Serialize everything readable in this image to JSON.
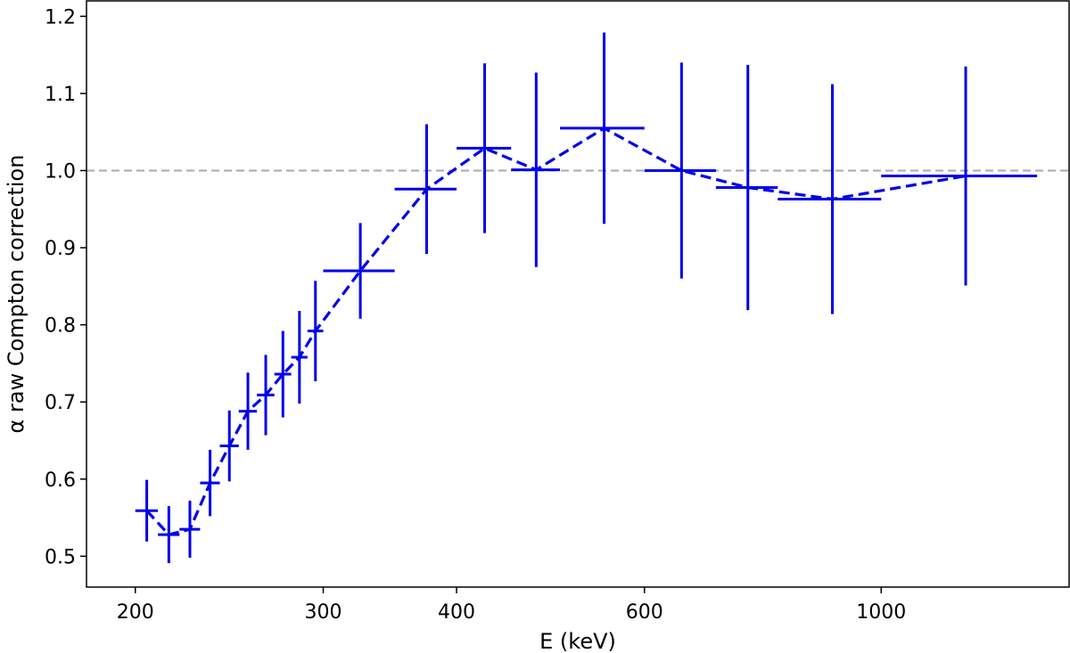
{
  "chart_data": {
    "type": "scatter",
    "title": "",
    "xlabel": "E (keV)",
    "ylabel": "α raw Compton correction",
    "x_scale": "log",
    "xlim": [
      180,
      1500
    ],
    "ylim": [
      0.46,
      1.22
    ],
    "x_ticks": [
      200,
      300,
      400,
      600,
      1000
    ],
    "y_ticks": [
      0.5,
      0.6,
      0.7,
      0.8,
      0.9,
      1.0,
      1.1,
      1.2
    ],
    "reference_line": {
      "y": 1.0,
      "style": "dashed",
      "color": "#aaaaaa"
    },
    "grid": false,
    "legend": "none",
    "series": [
      {
        "color": "#0000ee",
        "line_style": "dashed",
        "points": [
          {
            "x": 205,
            "x_low": 200,
            "x_high": 210,
            "y": 0.559,
            "y_err": 0.04
          },
          {
            "x": 215,
            "x_low": 210,
            "x_high": 220,
            "y": 0.528,
            "y_err": 0.037
          },
          {
            "x": 225,
            "x_low": 220,
            "x_high": 230,
            "y": 0.535,
            "y_err": 0.037
          },
          {
            "x": 235,
            "x_low": 230,
            "x_high": 240,
            "y": 0.595,
            "y_err": 0.043
          },
          {
            "x": 245,
            "x_low": 240,
            "x_high": 250,
            "y": 0.643,
            "y_err": 0.046
          },
          {
            "x": 255,
            "x_low": 250,
            "x_high": 260,
            "y": 0.688,
            "y_err": 0.05
          },
          {
            "x": 265,
            "x_low": 260,
            "x_high": 270,
            "y": 0.709,
            "y_err": 0.052
          },
          {
            "x": 275,
            "x_low": 270,
            "x_high": 280,
            "y": 0.736,
            "y_err": 0.056
          },
          {
            "x": 285,
            "x_low": 280,
            "x_high": 290,
            "y": 0.758,
            "y_err": 0.06
          },
          {
            "x": 295,
            "x_low": 290,
            "x_high": 300,
            "y": 0.792,
            "y_err": 0.065
          },
          {
            "x": 325,
            "x_low": 300,
            "x_high": 350,
            "y": 0.87,
            "y_err": 0.062
          },
          {
            "x": 375,
            "x_low": 350,
            "x_high": 400,
            "y": 0.976,
            "y_err": 0.084
          },
          {
            "x": 425,
            "x_low": 400,
            "x_high": 450,
            "y": 1.029,
            "y_err": 0.11
          },
          {
            "x": 475,
            "x_low": 450,
            "x_high": 500,
            "y": 1.001,
            "y_err": 0.126
          },
          {
            "x": 550,
            "x_low": 500,
            "x_high": 600,
            "y": 1.055,
            "y_err": 0.124
          },
          {
            "x": 650,
            "x_low": 600,
            "x_high": 700,
            "y": 1.0,
            "y_err": 0.14
          },
          {
            "x": 750,
            "x_low": 700,
            "x_high": 800,
            "y": 0.978,
            "y_err": 0.159
          },
          {
            "x": 900,
            "x_low": 800,
            "x_high": 1000,
            "y": 0.963,
            "y_err": 0.149
          },
          {
            "x": 1200,
            "x_low": 1000,
            "x_high": 1400,
            "y": 0.993,
            "y_err": 0.142
          }
        ]
      }
    ]
  }
}
